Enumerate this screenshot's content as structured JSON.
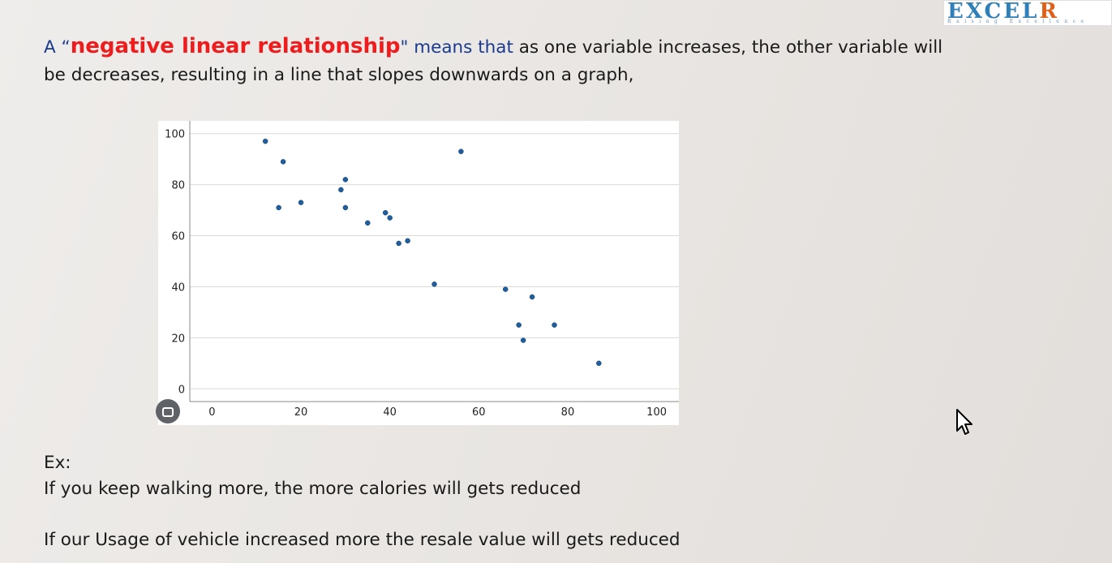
{
  "logo": {
    "main": "EXCEL",
    "accent": "R",
    "tagline": "Raising Excellence"
  },
  "intro": {
    "open_quote": "A “",
    "highlight": "negative linear relationship",
    "close_quote": "\" means that",
    "rest": " as one variable increases, the other variable will be decreases, resulting in a line that slopes downwards on a graph,"
  },
  "chart_data": {
    "type": "scatter",
    "title": "",
    "xlabel": "",
    "ylabel": "",
    "xlim": [
      -5,
      105
    ],
    "ylim": [
      -5,
      105
    ],
    "x_ticks": [
      0,
      20,
      40,
      60,
      80,
      100
    ],
    "y_ticks": [
      0,
      20,
      40,
      60,
      80,
      100
    ],
    "grid": "horizontal",
    "point_color": "#1f5fa0",
    "points": [
      {
        "x": 12,
        "y": 97
      },
      {
        "x": 16,
        "y": 89
      },
      {
        "x": 15,
        "y": 71
      },
      {
        "x": 20,
        "y": 73
      },
      {
        "x": 29,
        "y": 78
      },
      {
        "x": 30,
        "y": 82
      },
      {
        "x": 30,
        "y": 71
      },
      {
        "x": 35,
        "y": 65
      },
      {
        "x": 39,
        "y": 69
      },
      {
        "x": 40,
        "y": 67
      },
      {
        "x": 42,
        "y": 57
      },
      {
        "x": 44,
        "y": 58
      },
      {
        "x": 50,
        "y": 41
      },
      {
        "x": 56,
        "y": 93
      },
      {
        "x": 66,
        "y": 39
      },
      {
        "x": 69,
        "y": 25
      },
      {
        "x": 70,
        "y": 19
      },
      {
        "x": 72,
        "y": 36
      },
      {
        "x": 77,
        "y": 25
      },
      {
        "x": 87,
        "y": 10
      }
    ]
  },
  "examples": {
    "heading": "Ex:",
    "line1": "If you keep walking more, the more calories will gets reduced",
    "line2": "If our Usage of vehicle increased more the resale value will gets reduced"
  }
}
